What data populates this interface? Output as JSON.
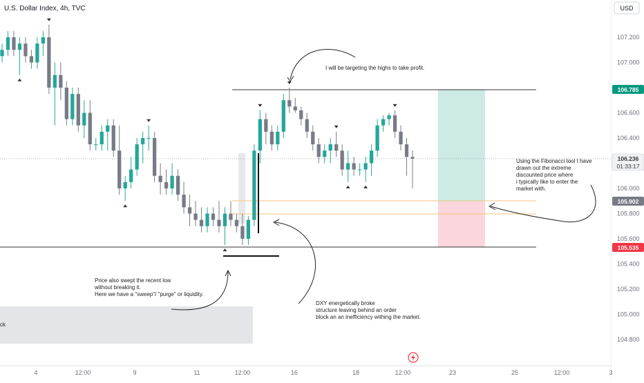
{
  "header": {
    "symbol_title": "U.S. Dollar Index, 4h, TVC",
    "currency_button": "USD"
  },
  "price_scale": {
    "ticks": [
      "107.200",
      "107.000",
      "106.600",
      "106.400",
      "106.000",
      "105.800",
      "105.600",
      "105.400",
      "105.200",
      "105.000",
      "104.800"
    ],
    "tick_values": [
      107.2,
      107.0,
      106.6,
      106.4,
      106.0,
      105.8,
      105.6,
      105.4,
      105.2,
      105.0,
      104.8
    ]
  },
  "time_axis": {
    "labels": [
      "4",
      "12:00",
      "9",
      "11",
      "12:00",
      "16",
      "18",
      "12:00",
      "23",
      "25",
      "12:00",
      "3"
    ]
  },
  "price_tags": {
    "take_profit": {
      "value": "106.785",
      "color": "#089981"
    },
    "current": {
      "value": "106.236",
      "countdown": "01:33:17"
    },
    "entry": {
      "value": "105.902",
      "color": "#787b86"
    },
    "stop": {
      "value": "105.535",
      "color": "#f23645"
    }
  },
  "annotations": {
    "target": "I will be targeting the highs to take profit.",
    "fib": [
      "Using the Fibonacci tool I have",
      "drawn out the extreme",
      "discounted price where",
      " i typically like to enter the",
      " market with."
    ],
    "sweep": [
      "Price also swept the recent low",
      "without breaking it.",
      "Here we have a \"sweep\"/ \"purge\" or liquidity."
    ],
    "dxy": [
      "DXY energetically broke",
      " structure leaving behind an order",
      " block an an inefficiency withing the market."
    ],
    "block_label": "ck"
  },
  "colors": {
    "bull_candle": "#26a69a",
    "bear_candle": "#787b86",
    "tp_zone": "#cdeae5",
    "sl_zone": "#fbd6dc",
    "fib_line": "#f5c37a"
  },
  "icons": {
    "event_marker": "lightning-icon"
  },
  "chart_data": {
    "type": "candlestick",
    "title": "U.S. Dollar Index, 4h, TVC",
    "ylim": [
      104.7,
      107.38
    ],
    "yticks": [
      107.2,
      107.0,
      106.6,
      106.4,
      106.0,
      105.8,
      105.6,
      105.4,
      105.2,
      105.0,
      104.8
    ],
    "x_labels": [
      "4",
      "12:00",
      "9",
      "11",
      "12:00",
      "16",
      "18",
      "12:00",
      "23",
      "25",
      "12:00",
      "3"
    ],
    "candles": [
      [
        107.05,
        107.15,
        107.0,
        107.1
      ],
      [
        107.1,
        107.25,
        107.05,
        107.2
      ],
      [
        107.2,
        107.25,
        107.05,
        107.1
      ],
      [
        107.1,
        107.2,
        106.9,
        107.15
      ],
      [
        107.15,
        107.2,
        107.0,
        107.05
      ],
      [
        107.05,
        107.1,
        106.95,
        107.0
      ],
      [
        107.0,
        107.2,
        106.95,
        107.15
      ],
      [
        107.15,
        107.25,
        107.05,
        107.2
      ],
      [
        107.2,
        107.3,
        106.75,
        106.8
      ],
      [
        106.8,
        107.0,
        106.5,
        106.9
      ],
      [
        106.9,
        107.0,
        106.7,
        106.8
      ],
      [
        106.8,
        106.85,
        106.5,
        106.55
      ],
      [
        106.55,
        106.8,
        106.5,
        106.75
      ],
      [
        106.75,
        106.8,
        106.45,
        106.5
      ],
      [
        106.5,
        106.7,
        106.4,
        106.6
      ],
      [
        106.6,
        106.7,
        106.3,
        106.35
      ],
      [
        106.35,
        106.4,
        106.3,
        106.35
      ],
      [
        106.35,
        106.5,
        106.3,
        106.45
      ],
      [
        106.45,
        106.55,
        106.3,
        106.5
      ],
      [
        106.5,
        106.55,
        106.25,
        106.3
      ],
      [
        106.3,
        106.5,
        105.95,
        106.0
      ],
      [
        106.0,
        106.1,
        105.9,
        106.05
      ],
      [
        106.05,
        106.25,
        106.0,
        106.15
      ],
      [
        106.15,
        106.4,
        106.1,
        106.35
      ],
      [
        106.35,
        106.45,
        106.2,
        106.4
      ],
      [
        106.4,
        106.5,
        106.3,
        106.4
      ],
      [
        106.4,
        106.45,
        106.05,
        106.1
      ],
      [
        106.1,
        106.2,
        105.95,
        106.05
      ],
      [
        106.05,
        106.15,
        105.95,
        106.0
      ],
      [
        106.0,
        106.2,
        105.95,
        106.1
      ],
      [
        106.1,
        106.15,
        105.9,
        105.95
      ],
      [
        105.95,
        106.05,
        105.8,
        105.85
      ],
      [
        105.85,
        105.95,
        105.7,
        105.8
      ],
      [
        105.8,
        105.9,
        105.7,
        105.75
      ],
      [
        105.75,
        105.85,
        105.65,
        105.7
      ],
      [
        105.7,
        105.85,
        105.65,
        105.8
      ],
      [
        105.8,
        105.85,
        105.7,
        105.75
      ],
      [
        105.75,
        105.9,
        105.65,
        105.7
      ],
      [
        105.7,
        105.85,
        105.55,
        105.8
      ],
      [
        105.8,
        105.9,
        105.7,
        105.75
      ],
      [
        105.75,
        105.8,
        105.65,
        105.7
      ],
      [
        105.7,
        105.8,
        105.55,
        105.6
      ],
      [
        105.6,
        105.78,
        105.55,
        105.75
      ],
      [
        105.75,
        106.35,
        105.7,
        106.3
      ],
      [
        106.3,
        106.62,
        106.2,
        106.55
      ],
      [
        106.55,
        106.6,
        106.35,
        106.45
      ],
      [
        106.45,
        106.5,
        106.3,
        106.35
      ],
      [
        106.35,
        106.5,
        106.3,
        106.45
      ],
      [
        106.45,
        106.75,
        106.4,
        106.7
      ],
      [
        106.7,
        106.8,
        106.6,
        106.65
      ],
      [
        106.65,
        106.72,
        106.6,
        106.62
      ],
      [
        106.62,
        106.65,
        106.5,
        106.55
      ],
      [
        106.55,
        106.6,
        106.4,
        106.45
      ],
      [
        106.45,
        106.5,
        106.3,
        106.35
      ],
      [
        106.35,
        106.4,
        106.2,
        106.25
      ],
      [
        106.25,
        106.35,
        106.2,
        106.3
      ],
      [
        106.3,
        106.4,
        106.2,
        106.35
      ],
      [
        106.35,
        106.45,
        106.25,
        106.3
      ],
      [
        106.3,
        106.35,
        106.1,
        106.15
      ],
      [
        106.15,
        106.3,
        106.05,
        106.2
      ],
      [
        106.2,
        106.25,
        106.1,
        106.15
      ],
      [
        106.15,
        106.2,
        106.1,
        106.15
      ],
      [
        106.15,
        106.25,
        106.05,
        106.2
      ],
      [
        106.2,
        106.35,
        106.1,
        106.3
      ],
      [
        106.3,
        106.55,
        106.25,
        106.5
      ],
      [
        106.5,
        106.58,
        106.45,
        106.55
      ],
      [
        106.55,
        106.6,
        106.5,
        106.58
      ],
      [
        106.58,
        106.62,
        106.4,
        106.45
      ],
      [
        106.45,
        106.5,
        106.3,
        106.35
      ],
      [
        106.35,
        106.4,
        106.1,
        106.25
      ],
      [
        106.25,
        106.3,
        106.0,
        106.236
      ]
    ]
  }
}
